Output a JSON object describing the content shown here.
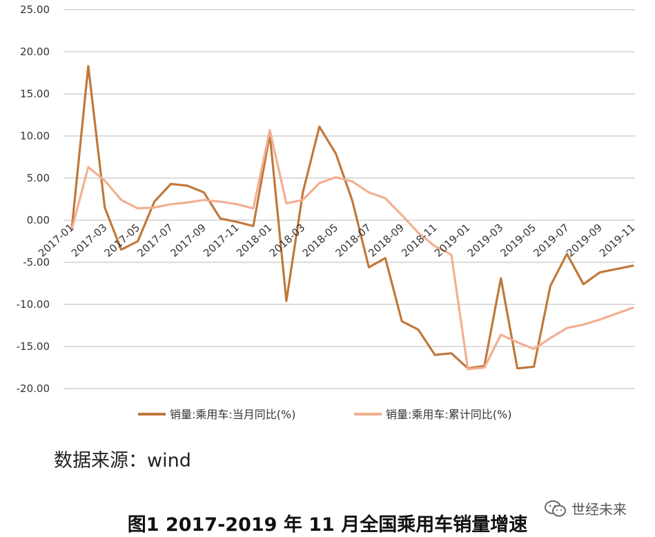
{
  "chart_data": {
    "type": "line",
    "x": [
      "2017-01",
      "2017-02",
      "2017-03",
      "2017-04",
      "2017-05",
      "2017-06",
      "2017-07",
      "2017-08",
      "2017-09",
      "2017-10",
      "2017-11",
      "2017-12",
      "2018-01",
      "2018-02",
      "2018-03",
      "2018-04",
      "2018-05",
      "2018-06",
      "2018-07",
      "2018-08",
      "2018-09",
      "2018-10",
      "2018-11",
      "2018-12",
      "2019-01",
      "2019-02",
      "2019-03",
      "2019-04",
      "2019-05",
      "2019-06",
      "2019-07",
      "2019-08",
      "2019-09",
      "2019-10",
      "2019-11"
    ],
    "x_tick_labels": [
      "2017-01",
      "2017-03",
      "2017-05",
      "2017-07",
      "2017-09",
      "2017-11",
      "2018-01",
      "2018-03",
      "2018-05",
      "2018-07",
      "2018-09",
      "2018-11",
      "2019-01",
      "2019-03",
      "2019-05",
      "2019-07",
      "2019-09",
      "2019-11"
    ],
    "y_tick_labels": [
      "25.00",
      "20.00",
      "15.00",
      "10.00",
      "5.00",
      "0.00",
      "-5.00",
      "-10.00",
      "-15.00",
      "-20.00"
    ],
    "ylim": [
      -20,
      25
    ],
    "grid": true,
    "legend_position": "bottom",
    "series": [
      {
        "name": "销量:乘用车:当月同比(%)",
        "color": "#C0783A",
        "values": [
          -1.0,
          18.3,
          1.5,
          -3.5,
          -2.5,
          2.2,
          4.3,
          4.1,
          3.3,
          0.2,
          -0.2,
          -0.7,
          10.2,
          -9.6,
          3.3,
          11.1,
          7.9,
          2.3,
          -5.6,
          -4.5,
          -12.0,
          -13.0,
          -16.0,
          -15.8,
          -17.6,
          -17.3,
          -6.9,
          -17.6,
          -17.4,
          -7.8,
          -4.0,
          -7.6,
          -6.2,
          -5.8,
          -5.4
        ]
      },
      {
        "name": "销量:乘用车:累计同比(%)",
        "color": "#F2AF8F",
        "values": [
          -1.1,
          6.3,
          4.7,
          2.4,
          1.4,
          1.5,
          1.9,
          2.1,
          2.4,
          2.2,
          1.9,
          1.4,
          10.7,
          2.0,
          2.4,
          4.4,
          5.1,
          4.6,
          3.3,
          2.6,
          0.6,
          -1.5,
          -3.1,
          -4.1,
          -17.7,
          -17.5,
          -13.6,
          -14.5,
          -15.3,
          -14.0,
          -12.8,
          -12.4,
          -11.8,
          -11.1,
          -10.4
        ]
      }
    ]
  },
  "source_text": "数据来源：wind",
  "caption_text": "图1 2017-2019 年 11 月全国乘用车销量增速",
  "watermark": {
    "icon": "wechat-icon",
    "text": "世经未来"
  }
}
